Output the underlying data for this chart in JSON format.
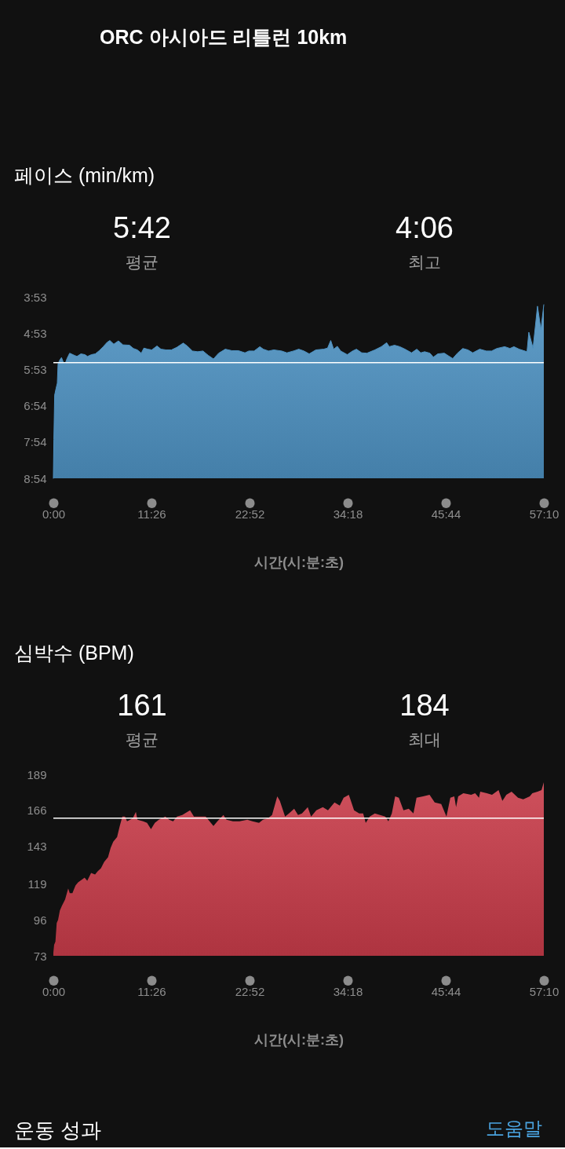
{
  "chart_data": [
    {
      "type": "other",
      "title": "ORC 아시아드 리틀런 10km"
    },
    {
      "type": "area",
      "title": "페이스 (min/km)",
      "xlabel": "시간(시:분:초)",
      "annotations": [
        "5:42",
        "평균",
        "4:06",
        "최고"
      ],
      "x": [
        0,
        0.06,
        0.15,
        0.31,
        0.46,
        0.55,
        0.77,
        0.95,
        1.16,
        1.38,
        1.59,
        1.9,
        2.45,
        2.75,
        3.21,
        3.67,
        3.98,
        4.44,
        4.89,
        5.35,
        5.81,
        6.27,
        6.58,
        7.04,
        7.59,
        8.11,
        8.87,
        9.33,
        9.79,
        10.25,
        10.55,
        11.01,
        11.47,
        12.08,
        12.54,
        13.15,
        13.76,
        14.38,
        15.14,
        15.6,
        16.21,
        16.82,
        17.44,
        18.05,
        18.66,
        19.27,
        20.04,
        20.8,
        21.56,
        22.33,
        22.79,
        23.4,
        24.07,
        24.47,
        25.08,
        25.69,
        26.61,
        27.22,
        27.99,
        28.6,
        29.21,
        29.82,
        30.59,
        31.5,
        31.96,
        32.33,
        32.67,
        33.1,
        33.49,
        34.26,
        34.87,
        35.33,
        35.94,
        36.55,
        37.47,
        38.23,
        38.85,
        39.15,
        39.76,
        40.38,
        40.99,
        41.75,
        42.36,
        42.82,
        43.28,
        43.89,
        44.29,
        44.81,
        45.57,
        46.03,
        46.55,
        47.1,
        47.72,
        48.33,
        48.88,
        49.7,
        50.47,
        51.08,
        51.69,
        52.61,
        53.22,
        53.68,
        54.29,
        55.21,
        55.42,
        55.91,
        56.43,
        56.83,
        57.1667
      ],
      "series": [
        {
          "type": "line",
          "color": "#4e92c2",
          "values": [
            8.9,
            7.83,
            6.6,
            6.42,
            6.27,
            5.73,
            5.62,
            5.56,
            5.69,
            5.73,
            5.59,
            5.44,
            5.5,
            5.53,
            5.46,
            5.48,
            5.53,
            5.48,
            5.46,
            5.37,
            5.26,
            5.14,
            5.09,
            5.19,
            5.1,
            5.21,
            5.22,
            5.31,
            5.35,
            5.44,
            5.3,
            5.33,
            5.35,
            5.24,
            5.33,
            5.35,
            5.35,
            5.28,
            5.16,
            5.24,
            5.38,
            5.4,
            5.38,
            5.5,
            5.6,
            5.44,
            5.33,
            5.37,
            5.37,
            5.43,
            5.38,
            5.38,
            5.26,
            5.33,
            5.38,
            5.35,
            5.38,
            5.43,
            5.38,
            5.33,
            5.38,
            5.46,
            5.35,
            5.33,
            5.3,
            5.09,
            5.33,
            5.25,
            5.38,
            5.48,
            5.38,
            5.33,
            5.43,
            5.44,
            5.35,
            5.26,
            5.15,
            5.26,
            5.22,
            5.26,
            5.33,
            5.43,
            5.33,
            5.43,
            5.4,
            5.44,
            5.55,
            5.46,
            5.44,
            5.51,
            5.59,
            5.44,
            5.31,
            5.35,
            5.43,
            5.33,
            5.38,
            5.38,
            5.31,
            5.26,
            5.31,
            5.26,
            5.33,
            5.4,
            4.86,
            5.3,
            4.14,
            4.79,
            4.1
          ],
          "lower": [
            8.9,
            7.83,
            6.6,
            6.42,
            6.27,
            5.73,
            5.62,
            5.56,
            5.69,
            5.73,
            5.59,
            5.44,
            5.5,
            5.53,
            5.46,
            5.48,
            5.53,
            5.48,
            5.46,
            5.37,
            5.26,
            5.14,
            5.09,
            5.19,
            5.1,
            5.21,
            5.22,
            5.31,
            5.35,
            5.44,
            5.3,
            5.33,
            5.35,
            5.24,
            5.33,
            5.35,
            5.35,
            5.28,
            5.16,
            5.24,
            5.38,
            5.4,
            5.38,
            5.5,
            5.6,
            5.44,
            5.33,
            5.37,
            5.37,
            5.43,
            5.38,
            5.38,
            5.26,
            5.33,
            5.38,
            5.35,
            5.38,
            5.43,
            5.38,
            5.33,
            5.38,
            5.46,
            5.35,
            5.33,
            5.3,
            5.09,
            5.33,
            5.25,
            5.38,
            5.48,
            5.38,
            5.33,
            5.43,
            5.44,
            5.35,
            5.26,
            5.15,
            5.26,
            5.22,
            5.26,
            5.33,
            5.43,
            5.33,
            5.43,
            5.4,
            5.44,
            5.55,
            5.46,
            5.44,
            5.51,
            5.59,
            5.44,
            5.31,
            5.35,
            5.43,
            5.33,
            5.38,
            5.38,
            5.31,
            5.26,
            5.31,
            5.26,
            5.33,
            5.4,
            4.86,
            5.3,
            4.14,
            4.79,
            4.1
          ],
          "upper": [
            8.9,
            8.9,
            8.9,
            8.9,
            8.9,
            8.9,
            8.9,
            8.9,
            8.9,
            8.9,
            8.9,
            8.9,
            8.9,
            8.9,
            8.9,
            8.9,
            8.9,
            8.9,
            8.9,
            8.9,
            8.9,
            8.9,
            8.9,
            8.9,
            8.9,
            8.9,
            8.9,
            8.9,
            8.9,
            8.9,
            8.9,
            8.9,
            8.9,
            8.9,
            8.9,
            8.9,
            8.9,
            8.9,
            8.9,
            8.9,
            8.9,
            8.9,
            8.9,
            8.9,
            8.9,
            8.9,
            8.9,
            8.9,
            8.9,
            8.9,
            8.9,
            8.9,
            8.9,
            8.9,
            8.9,
            8.9,
            8.9,
            8.9,
            8.9,
            8.9,
            8.9,
            8.9,
            8.9,
            8.9,
            8.9,
            8.9,
            8.9,
            8.9,
            8.9,
            8.9,
            8.9,
            8.9,
            8.9,
            8.9,
            8.9,
            8.9,
            8.9,
            8.9,
            8.9,
            8.9,
            8.9,
            8.9,
            8.9,
            8.9,
            8.9,
            8.9,
            8.9,
            8.9,
            8.9,
            8.9,
            8.9,
            8.9,
            8.9,
            8.9,
            8.9,
            8.9,
            8.9,
            8.9,
            8.9,
            8.9,
            8.9,
            8.9,
            8.9,
            8.9,
            8.9,
            8.9,
            8.9,
            8.9,
            8.9
          ]
        }
      ],
      "xlim": [
        0,
        57.1667
      ],
      "xticks": [
        {
          "value": 0,
          "label": "0:00"
        },
        {
          "value": 11.4333,
          "label": "11:26"
        },
        {
          "value": 22.8667,
          "label": "22:52"
        },
        {
          "value": 34.3,
          "label": "34:18"
        },
        {
          "value": 45.7333,
          "label": "45:44"
        },
        {
          "value": 57.1667,
          "label": "57:10"
        }
      ],
      "ylim": [
        8.9,
        3.8833
      ],
      "yticks": [
        {
          "value": 3.8833,
          "label": "3:53"
        },
        {
          "value": 4.8833,
          "label": "4:53"
        },
        {
          "value": 5.8833,
          "label": "5:53"
        },
        {
          "value": 6.9,
          "label": "6:54"
        },
        {
          "value": 7.9,
          "label": "7:54"
        },
        {
          "value": 8.9,
          "label": "8:54"
        }
      ],
      "ref_lines": [
        {
          "axis": "y",
          "value": 5.7,
          "color": "#ffffff"
        }
      ]
    },
    {
      "type": "area",
      "title": "심박수 (BPM)",
      "xlabel": "시간(시:분:초)",
      "annotations": [
        "161",
        "평균",
        "184",
        "최대"
      ],
      "x": [
        0,
        0.09,
        0.24,
        0.39,
        0.55,
        0.76,
        1.0,
        1.37,
        1.73,
        1.91,
        2.22,
        2.58,
        2.88,
        3.64,
        3.95,
        4.4,
        4.86,
        5.16,
        5.55,
        5.92,
        6.37,
        6.68,
        6.98,
        7.43,
        7.74,
        8.04,
        8.35,
        8.59,
        8.95,
        9.26,
        9.62,
        9.8,
        10.47,
        10.92,
        11.38,
        11.83,
        12.29,
        13.05,
        13.5,
        13.96,
        14.41,
        15.02,
        15.93,
        16.39,
        17.14,
        17.75,
        18.21,
        18.66,
        19.12,
        19.82,
        20.18,
        20.94,
        21.7,
        22.61,
        23.21,
        23.97,
        24.43,
        25.03,
        25.49,
        26.1,
        26.4,
        27.01,
        27.46,
        28.07,
        28.52,
        28.98,
        29.65,
        30.04,
        30.65,
        31.41,
        32.01,
        32.77,
        33.38,
        33.83,
        34.44,
        35.05,
        35.65,
        36.11,
        36.41,
        36.87,
        37.47,
        38.08,
        38.69,
        39.05,
        39.45,
        39.84,
        40.27,
        40.81,
        41.42,
        41.97,
        42.33,
        43.09,
        43.85,
        44.45,
        45.21,
        45.82,
        46.27,
        46.73,
        46.94,
        47.19,
        47.79,
        48.7,
        49.16,
        49.61,
        49.76,
        50.52,
        51.13,
        51.89,
        52.34,
        52.8,
        53.41,
        54.16,
        54.77,
        55.53,
        55.83,
        56.44,
        56.9,
        57.1667
      ],
      "values": [
        75,
        80,
        82,
        94,
        96,
        102,
        105,
        109,
        116,
        113,
        113,
        118,
        120,
        123,
        121,
        126,
        125,
        127,
        129,
        133,
        136,
        142,
        146,
        149,
        156,
        162,
        162,
        159,
        160,
        161,
        165,
        160,
        159,
        158,
        154,
        158,
        160,
        162,
        160,
        159,
        162,
        163,
        166,
        162,
        162,
        162,
        159,
        156,
        159,
        163,
        160,
        159,
        159,
        160,
        159,
        158,
        160,
        161,
        163,
        175,
        172,
        162,
        164,
        167,
        163,
        164,
        168,
        162,
        166,
        168,
        166,
        171,
        169,
        174,
        176,
        166,
        164,
        164,
        158,
        162,
        164,
        163,
        162,
        159,
        164,
        175,
        174,
        166,
        167,
        164,
        174,
        175,
        176,
        171,
        170,
        162,
        174,
        175,
        168,
        175,
        177,
        176,
        177,
        174,
        178,
        177,
        176,
        179,
        172,
        176,
        178,
        174,
        173,
        175,
        177,
        178,
        179,
        184
      ],
      "color": "#c83c4a",
      "xlim": [
        0,
        57.1667
      ],
      "xticks": [
        {
          "value": 0,
          "label": "0:00"
        },
        {
          "value": 11.4333,
          "label": "11:26"
        },
        {
          "value": 22.8667,
          "label": "22:52"
        },
        {
          "value": 34.3,
          "label": "34:18"
        },
        {
          "value": 45.7333,
          "label": "45:44"
        },
        {
          "value": 57.1667,
          "label": "57:10"
        }
      ],
      "ylim": [
        73,
        189
      ],
      "yticks": [
        73,
        96,
        119,
        143,
        166,
        189
      ],
      "ref_lines": [
        {
          "axis": "y",
          "value": 161,
          "color": "#ffffff"
        }
      ]
    },
    {
      "type": "other",
      "title": "운동 성과",
      "annotations": [
        "도움말"
      ]
    }
  ]
}
